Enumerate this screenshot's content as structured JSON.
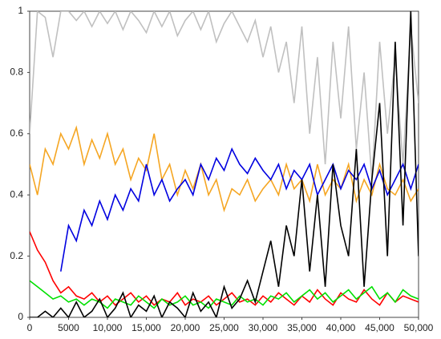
{
  "chart_data": {
    "type": "line",
    "x": [
      0,
      1000,
      2000,
      3000,
      4000,
      5000,
      6000,
      7000,
      8000,
      9000,
      10000,
      11000,
      12000,
      13000,
      14000,
      15000,
      16000,
      17000,
      18000,
      19000,
      20000,
      21000,
      22000,
      23000,
      24000,
      25000,
      26000,
      27000,
      28000,
      29000,
      30000,
      31000,
      32000,
      33000,
      34000,
      35000,
      36000,
      37000,
      38000,
      39000,
      40000,
      41000,
      42000,
      43000,
      44000,
      45000,
      46000,
      47000,
      48000,
      49000,
      50000
    ],
    "series": [
      {
        "color": "#c0c0c0",
        "values": [
          0.6,
          1,
          0.98,
          0.85,
          1,
          1,
          0.97,
          1,
          0.95,
          1,
          0.96,
          1,
          0.94,
          1,
          0.97,
          0.93,
          1,
          0.95,
          1,
          0.92,
          0.97,
          1,
          0.94,
          1,
          0.9,
          0.96,
          1,
          0.95,
          0.9,
          0.97,
          0.85,
          0.95,
          0.8,
          0.9,
          0.7,
          0.95,
          0.6,
          0.85,
          0.5,
          0.9,
          0.65,
          0.95,
          0.55,
          0.8,
          0.45,
          0.9,
          0.6,
          0.85,
          0.5,
          0.95,
          0.7
        ]
      },
      {
        "color": "#f5a623",
        "values": [
          0.5,
          0.4,
          0.55,
          0.5,
          0.6,
          0.55,
          0.62,
          0.5,
          0.58,
          0.52,
          0.6,
          0.5,
          0.55,
          0.45,
          0.52,
          0.48,
          0.6,
          0.45,
          0.5,
          0.4,
          0.48,
          0.42,
          0.5,
          0.4,
          0.45,
          0.35,
          0.42,
          0.4,
          0.45,
          0.38,
          0.42,
          0.45,
          0.4,
          0.5,
          0.42,
          0.45,
          0.38,
          0.5,
          0.4,
          0.45,
          0.42,
          0.5,
          0.38,
          0.45,
          0.4,
          0.5,
          0.42,
          0.4,
          0.45,
          0.38,
          0.42
        ]
      },
      {
        "color": "#0000e0",
        "values": [
          null,
          null,
          null,
          null,
          0.15,
          0.3,
          0.25,
          0.35,
          0.3,
          0.38,
          0.32,
          0.4,
          0.35,
          0.42,
          0.38,
          0.5,
          0.4,
          0.45,
          0.38,
          0.42,
          0.45,
          0.4,
          0.5,
          0.45,
          0.52,
          0.48,
          0.55,
          0.5,
          0.47,
          0.52,
          0.48,
          0.45,
          0.5,
          0.42,
          0.48,
          0.45,
          0.5,
          0.4,
          0.45,
          0.5,
          0.42,
          0.48,
          0.45,
          0.5,
          0.42,
          0.48,
          0.4,
          0.45,
          0.5,
          0.42,
          0.5
        ]
      },
      {
        "color": "#ff0000",
        "values": [
          0.28,
          0.22,
          0.18,
          0.12,
          0.08,
          0.1,
          0.07,
          0.06,
          0.08,
          0.05,
          0.07,
          0.04,
          0.06,
          0.08,
          0.05,
          0.07,
          0.04,
          0.06,
          0.05,
          0.08,
          0.04,
          0.06,
          0.05,
          0.07,
          0.04,
          0.06,
          0.08,
          0.05,
          0.06,
          0.04,
          0.07,
          0.05,
          0.08,
          0.06,
          0.04,
          0.07,
          0.05,
          0.09,
          0.06,
          0.04,
          0.08,
          0.06,
          0.05,
          0.09,
          0.06,
          0.04,
          0.08,
          0.05,
          0.07,
          0.06,
          0.05
        ]
      },
      {
        "color": "#00e000",
        "values": [
          0.12,
          0.1,
          0.08,
          0.06,
          0.07,
          0.05,
          0.06,
          0.04,
          0.06,
          0.05,
          0.03,
          0.06,
          0.05,
          0.04,
          0.07,
          0.05,
          0.03,
          0.06,
          0.04,
          0.05,
          0.07,
          0.04,
          0.05,
          0.03,
          0.06,
          0.05,
          0.04,
          0.07,
          0.05,
          0.06,
          0.04,
          0.07,
          0.06,
          0.08,
          0.05,
          0.07,
          0.09,
          0.06,
          0.08,
          0.05,
          0.07,
          0.09,
          0.06,
          0.08,
          0.1,
          0.06,
          0.08,
          0.05,
          0.09,
          0.07,
          0.06
        ]
      },
      {
        "color": "#000000",
        "values": [
          0,
          0,
          0.02,
          0,
          0.03,
          0,
          0.05,
          0,
          0.02,
          0.06,
          0,
          0.03,
          0.08,
          0,
          0.04,
          0.02,
          0.07,
          0,
          0.05,
          0.03,
          0,
          0.08,
          0.02,
          0.05,
          0,
          0.1,
          0.03,
          0.06,
          0.12,
          0.05,
          0.15,
          0.25,
          0.1,
          0.3,
          0.2,
          0.45,
          0.15,
          0.4,
          0.1,
          0.5,
          0.3,
          0.2,
          0.55,
          0.1,
          0.45,
          0.7,
          0.2,
          0.9,
          0.3,
          1,
          0.2
        ]
      }
    ],
    "xlim": [
      0,
      50000
    ],
    "xticks": [
      0,
      5000,
      {
        "value": 10000,
        "label": "10,000"
      },
      {
        "value": 15000,
        "label": "15,000"
      },
      {
        "value": 20000,
        "label": "20,000"
      },
      {
        "value": 25000,
        "label": "25,000"
      },
      {
        "value": 30000,
        "label": "30,000"
      },
      {
        "value": 35000,
        "label": "35,000"
      },
      {
        "value": 40000,
        "label": "40,000"
      },
      {
        "value": 45000,
        "label": "45,000"
      },
      {
        "value": 50000,
        "label": "50,000"
      }
    ],
    "ylim": [
      0,
      1
    ],
    "yticks": [
      0,
      0.2,
      0.4,
      0.6,
      0.8,
      1
    ]
  }
}
